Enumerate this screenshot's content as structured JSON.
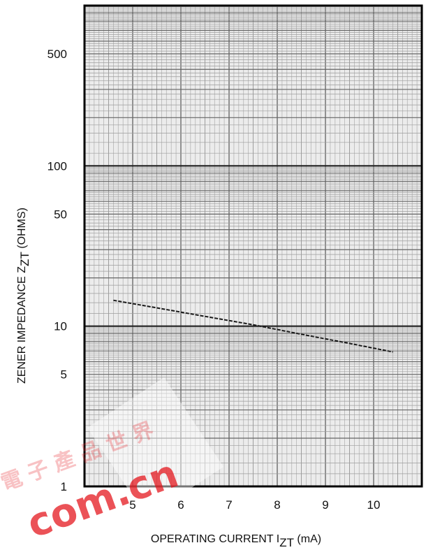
{
  "chart_data": {
    "type": "line",
    "xlabel": {
      "main": "OPERATING CURRENT I",
      "sub": "ZT",
      "unit": " (mA)"
    },
    "ylabel": {
      "main": "ZENER IMPEDANCE Z",
      "sub": "ZT",
      "unit": " (OHMS)"
    },
    "x": [
      4.6,
      5.5,
      6.5,
      7.5,
      8.5,
      9.5,
      10.4
    ],
    "series": [
      {
        "values": [
          14.5,
          13.0,
          11.5,
          10.2,
          8.9,
          7.8,
          6.9
        ]
      }
    ],
    "xlim": [
      4,
      11
    ],
    "ylim": [
      1,
      1000
    ],
    "yscale": "log",
    "xticks": [
      5,
      6,
      7,
      8,
      9,
      10
    ],
    "yticks": [
      1,
      5,
      10,
      50,
      100,
      500
    ],
    "xtick_labels": [
      "5",
      "6",
      "7",
      "8",
      "9",
      "10"
    ],
    "ytick_labels": [
      "1",
      "5",
      "10",
      "50",
      "100",
      "500"
    ],
    "grid": true
  },
  "watermark": {
    "chars": [
      "電",
      "子",
      "產",
      "品",
      "世",
      "界"
    ],
    "domain": "com.cn",
    "color": "#e8343a"
  }
}
